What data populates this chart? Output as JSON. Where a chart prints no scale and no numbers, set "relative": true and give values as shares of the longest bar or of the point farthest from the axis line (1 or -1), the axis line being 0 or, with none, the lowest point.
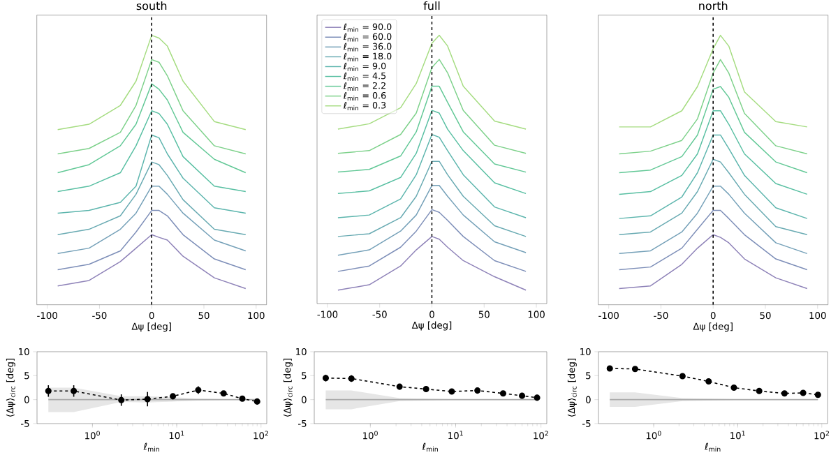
{
  "chart_data": [
    {
      "type": "line",
      "title": "south",
      "xlabel": "Δψ [deg]",
      "relative": true,
      "x": [
        -90,
        -60,
        -30,
        -15,
        0,
        7,
        15,
        30,
        60,
        90
      ],
      "xlim": [
        -110,
        110
      ],
      "xticks": [
        -100,
        -50,
        0,
        50,
        100
      ],
      "ref_lines": [
        {
          "axis": "x",
          "value": 0,
          "color": "#000000",
          "line_style": "dashed"
        }
      ],
      "series": [
        {
          "color": "#8e82b8",
          "values": [
            0.07,
            0.09,
            0.16,
            0.21,
            0.26,
            0.25,
            0.24,
            0.18,
            0.1,
            0.06
          ]
        },
        {
          "color": "#7d8eb8",
          "values": [
            0.13,
            0.15,
            0.2,
            0.27,
            0.35,
            0.35,
            0.33,
            0.26,
            0.17,
            0.13
          ]
        },
        {
          "color": "#74a0b8",
          "values": [
            0.19,
            0.21,
            0.28,
            0.34,
            0.44,
            0.44,
            0.41,
            0.34,
            0.24,
            0.2
          ]
        },
        {
          "color": "#68aab2",
          "values": [
            0.26,
            0.28,
            0.33,
            0.41,
            0.53,
            0.52,
            0.48,
            0.39,
            0.28,
            0.26
          ]
        },
        {
          "color": "#5cb5ad",
          "values": [
            0.34,
            0.35,
            0.38,
            0.44,
            0.63,
            0.62,
            0.56,
            0.47,
            0.36,
            0.34
          ]
        },
        {
          "color": "#58bfa2",
          "values": [
            0.42,
            0.44,
            0.49,
            0.59,
            0.72,
            0.71,
            0.67,
            0.55,
            0.44,
            0.42
          ]
        },
        {
          "color": "#62c896",
          "values": [
            0.49,
            0.52,
            0.59,
            0.67,
            0.82,
            0.8,
            0.76,
            0.64,
            0.54,
            0.49
          ]
        },
        {
          "color": "#7dd18a",
          "values": [
            0.56,
            0.58,
            0.64,
            0.74,
            0.91,
            0.9,
            0.85,
            0.72,
            0.59,
            0.56
          ]
        },
        {
          "color": "#a5dc80",
          "values": [
            0.65,
            0.67,
            0.74,
            0.83,
            1.0,
            0.99,
            0.96,
            0.83,
            0.68,
            0.65
          ]
        }
      ]
    },
    {
      "type": "line",
      "title": "full",
      "xlabel": "Δψ [deg]",
      "relative": true,
      "legend": "top left",
      "x": [
        -90,
        -60,
        -30,
        -15,
        0,
        7,
        15,
        30,
        60,
        90
      ],
      "xlim": [
        -110,
        110
      ],
      "xticks": [
        -100,
        -50,
        0,
        50,
        100
      ],
      "ref_lines": [
        {
          "axis": "x",
          "value": 0,
          "color": "#000000",
          "line_style": "dashed"
        }
      ],
      "series": [
        {
          "name": "ℓ$_{min}$ = 90.0",
          "color": "#8e82b8",
          "values": [
            0.05,
            0.07,
            0.14,
            0.2,
            0.25,
            0.24,
            0.21,
            0.16,
            0.1,
            0.05
          ]
        },
        {
          "name": "ℓ$_{min}$ = 60.0",
          "color": "#7d8eb8",
          "values": [
            0.12,
            0.14,
            0.21,
            0.27,
            0.35,
            0.34,
            0.31,
            0.25,
            0.16,
            0.12
          ]
        },
        {
          "name": "ℓ$_{min}$ = 36.0",
          "color": "#74a0b8",
          "values": [
            0.18,
            0.2,
            0.27,
            0.33,
            0.44,
            0.44,
            0.4,
            0.33,
            0.23,
            0.19
          ]
        },
        {
          "name": "ℓ$_{min}$ = 18.0",
          "color": "#68aab2",
          "values": [
            0.25,
            0.26,
            0.32,
            0.4,
            0.53,
            0.53,
            0.48,
            0.4,
            0.29,
            0.25
          ]
        },
        {
          "name": "ℓ$_{min}$ = 9.0",
          "color": "#5cb5ad",
          "values": [
            0.32,
            0.33,
            0.39,
            0.48,
            0.63,
            0.62,
            0.57,
            0.48,
            0.36,
            0.32
          ]
        },
        {
          "name": "ℓ$_{min}$ = 4.5",
          "color": "#58bfa2",
          "values": [
            0.41,
            0.42,
            0.47,
            0.56,
            0.72,
            0.71,
            0.65,
            0.57,
            0.45,
            0.41
          ]
        },
        {
          "name": "ℓ$_{min}$ = 2.2",
          "color": "#62c896",
          "values": [
            0.49,
            0.5,
            0.55,
            0.64,
            0.81,
            0.81,
            0.75,
            0.64,
            0.52,
            0.49
          ]
        },
        {
          "name": "ℓ$_{min}$ = 0.6",
          "color": "#7dd18a",
          "values": [
            0.56,
            0.57,
            0.63,
            0.71,
            0.88,
            0.91,
            0.86,
            0.72,
            0.59,
            0.56
          ]
        },
        {
          "name": "ℓ$_{min}$ = 0.3",
          "color": "#a5dc80",
          "values": [
            0.65,
            0.67,
            0.73,
            0.82,
            0.97,
            1.0,
            0.96,
            0.81,
            0.68,
            0.65
          ]
        }
      ]
    },
    {
      "type": "line",
      "title": "north",
      "xlabel": "Δψ [deg]",
      "relative": true,
      "x": [
        -90,
        -60,
        -30,
        -15,
        0,
        7,
        15,
        30,
        60,
        90
      ],
      "xlim": [
        -110,
        110
      ],
      "xticks": [
        -100,
        -50,
        0,
        50,
        100
      ],
      "ref_lines": [
        {
          "axis": "x",
          "value": 0,
          "color": "#000000",
          "line_style": "dashed"
        }
      ],
      "series": [
        {
          "color": "#8e82b8",
          "values": [
            0.06,
            0.07,
            0.15,
            0.21,
            0.26,
            0.25,
            0.23,
            0.17,
            0.1,
            0.06
          ]
        },
        {
          "color": "#7d8eb8",
          "values": [
            0.13,
            0.14,
            0.21,
            0.28,
            0.35,
            0.35,
            0.32,
            0.26,
            0.17,
            0.13
          ]
        },
        {
          "color": "#74a0b8",
          "values": [
            0.19,
            0.2,
            0.27,
            0.34,
            0.44,
            0.44,
            0.41,
            0.34,
            0.23,
            0.19
          ]
        },
        {
          "color": "#68aab2",
          "values": [
            0.26,
            0.27,
            0.34,
            0.42,
            0.54,
            0.53,
            0.49,
            0.41,
            0.29,
            0.26
          ]
        },
        {
          "color": "#5cb5ad",
          "values": [
            0.32,
            0.33,
            0.4,
            0.49,
            0.63,
            0.63,
            0.58,
            0.48,
            0.36,
            0.32
          ]
        },
        {
          "color": "#58bfa2",
          "values": [
            0.41,
            0.42,
            0.48,
            0.56,
            0.72,
            0.72,
            0.67,
            0.56,
            0.45,
            0.41
          ]
        },
        {
          "color": "#62c896",
          "values": [
            0.49,
            0.5,
            0.55,
            0.63,
            0.8,
            0.81,
            0.77,
            0.64,
            0.53,
            0.49
          ]
        },
        {
          "color": "#7dd18a",
          "values": [
            0.56,
            0.57,
            0.61,
            0.69,
            0.86,
            0.91,
            0.86,
            0.71,
            0.59,
            0.56
          ]
        },
        {
          "color": "#a5dc80",
          "values": [
            0.66,
            0.66,
            0.72,
            0.81,
            0.95,
            1.0,
            0.96,
            0.79,
            0.68,
            0.66
          ]
        }
      ]
    },
    {
      "type": "line",
      "xlabel": "ℓ$_{min}$",
      "ylabel": "⟨Δψ⟩$_{circ}$ [deg]",
      "log": "x",
      "x": [
        0.3,
        0.6,
        2.2,
        4.5,
        9,
        18,
        36,
        60,
        90
      ],
      "xlim": [
        0.22,
        117
      ],
      "xticks": [
        {
          "value": 1,
          "label": "10$^{0}$"
        },
        {
          "value": 10,
          "label": "10$^{1}$"
        },
        {
          "value": 100,
          "label": "10$^{2}$"
        }
      ],
      "ylim": [
        -5,
        10
      ],
      "yticks": [
        -5,
        0,
        5,
        10
      ],
      "series": [
        {
          "color": "#aaaaaa",
          "values": [
            0,
            0,
            0,
            0,
            0,
            0,
            0,
            0,
            0
          ],
          "lower": [
            -2.6,
            -2.6,
            -0.5,
            -0.6,
            -0.4,
            -0.2,
            -0.1,
            -0.1,
            -0.1
          ],
          "upper": [
            2.5,
            2.5,
            0.7,
            0.7,
            0.5,
            0.2,
            0.1,
            0.1,
            0.1
          ],
          "line_style": "solid",
          "marker": "none"
        },
        {
          "color": "#000000",
          "values": [
            1.8,
            1.8,
            -0.1,
            0.1,
            0.7,
            2.0,
            1.3,
            0.2,
            -0.4
          ],
          "errors": [
            1.2,
            1.2,
            1.2,
            1.5,
            0.5,
            0.8,
            null,
            null,
            null
          ],
          "line_style": "dashed",
          "marker": "circle"
        }
      ]
    },
    {
      "type": "line",
      "xlabel": "ℓ$_{min}$",
      "ylabel": "⟨Δψ⟩$_{circ}$ [deg]",
      "log": "x",
      "x": [
        0.3,
        0.6,
        2.2,
        4.5,
        9,
        18,
        36,
        60,
        90
      ],
      "xlim": [
        0.22,
        117
      ],
      "xticks": [
        {
          "value": 1,
          "label": "10$^{0}$"
        },
        {
          "value": 10,
          "label": "10$^{1}$"
        },
        {
          "value": 100,
          "label": "10$^{2}$"
        }
      ],
      "ylim": [
        -5,
        10
      ],
      "yticks": [
        -5,
        0,
        5,
        10
      ],
      "series": [
        {
          "color": "#aaaaaa",
          "values": [
            0,
            0,
            0,
            0,
            0,
            0,
            0,
            0,
            0
          ],
          "lower": [
            -2.0,
            -2.0,
            -0.3,
            -0.2,
            -0.1,
            -0.1,
            -0.1,
            -0.1,
            -0.1
          ],
          "upper": [
            1.9,
            1.9,
            0.3,
            0.2,
            0.1,
            0.1,
            0.1,
            0.1,
            0.1
          ],
          "line_style": "solid",
          "marker": "none"
        },
        {
          "color": "#000000",
          "values": [
            4.5,
            4.4,
            2.7,
            2.2,
            1.7,
            1.9,
            1.3,
            0.8,
            0.4
          ],
          "errors": [
            0.7,
            0.7,
            null,
            null,
            null,
            null,
            null,
            null,
            null
          ],
          "line_style": "dashed",
          "marker": "circle"
        }
      ]
    },
    {
      "type": "line",
      "xlabel": "ℓ$_{min}$",
      "ylabel": "⟨Δψ⟩$_{circ}$ [deg]",
      "log": "x",
      "x": [
        0.3,
        0.6,
        2.2,
        4.5,
        9,
        18,
        36,
        60,
        90
      ],
      "xlim": [
        0.22,
        117
      ],
      "xticks": [
        {
          "value": 1,
          "label": "10$^{0}$"
        },
        {
          "value": 10,
          "label": "10$^{1}$"
        },
        {
          "value": 100,
          "label": "10$^{2}$"
        }
      ],
      "ylim": [
        -5,
        10
      ],
      "yticks": [
        -5,
        0,
        5,
        10
      ],
      "series": [
        {
          "color": "#aaaaaa",
          "values": [
            0,
            0,
            0,
            0,
            0,
            0,
            0,
            0,
            0
          ],
          "lower": [
            -1.5,
            -1.5,
            -0.3,
            -0.2,
            -0.1,
            -0.1,
            -0.1,
            -0.1,
            -0.1
          ],
          "upper": [
            1.5,
            1.5,
            0.3,
            0.2,
            0.1,
            0.1,
            0.1,
            0.1,
            0.1
          ],
          "line_style": "solid",
          "marker": "none"
        },
        {
          "color": "#000000",
          "values": [
            6.5,
            6.4,
            4.9,
            3.8,
            2.5,
            1.8,
            1.3,
            1.4,
            1.0
          ],
          "errors": [
            null,
            null,
            null,
            null,
            0.5,
            null,
            null,
            null,
            null
          ],
          "line_style": "dashed",
          "marker": "circle"
        }
      ]
    }
  ]
}
